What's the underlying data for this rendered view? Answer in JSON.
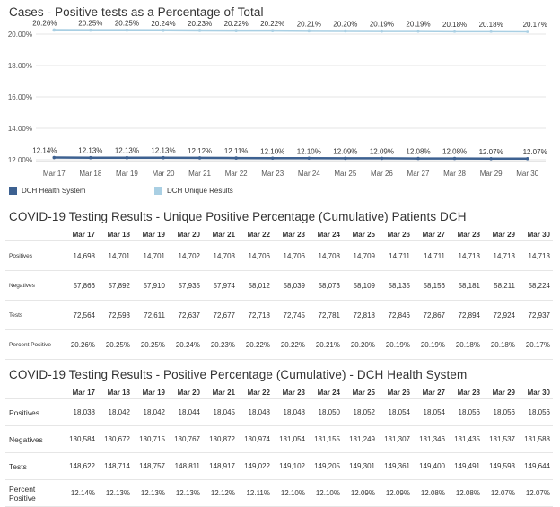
{
  "chart_title": "Cases - Positive tests as a Percentage of Total",
  "chart_data": {
    "type": "line",
    "categories": [
      "Mar 17",
      "Mar 18",
      "Mar 19",
      "Mar 20",
      "Mar 21",
      "Mar 22",
      "Mar 23",
      "Mar 24",
      "Mar 25",
      "Mar 26",
      "Mar 27",
      "Mar 28",
      "Mar 29",
      "Mar 30"
    ],
    "y_ticks": [
      "20.00%",
      "18.00%",
      "16.00%",
      "14.00%",
      "12.00%"
    ],
    "ylim": [
      12.0,
      20.0
    ],
    "grid": true,
    "legend_position": "bottom-left",
    "series": [
      {
        "name": "DCH Unique Results",
        "color": "#a9cfe3",
        "values": [
          20.26,
          20.25,
          20.25,
          20.24,
          20.23,
          20.22,
          20.22,
          20.21,
          20.2,
          20.19,
          20.19,
          20.18,
          20.18,
          20.17
        ],
        "labels": [
          "20.26%",
          "20.25%",
          "20.25%",
          "20.24%",
          "20.23%",
          "20.22%",
          "20.22%",
          "20.21%",
          "20.20%",
          "20.19%",
          "20.19%",
          "20.18%",
          "20.18%",
          "20.17%"
        ]
      },
      {
        "name": "DCH Health System",
        "color": "#3d6191",
        "values": [
          12.14,
          12.13,
          12.13,
          12.13,
          12.12,
          12.11,
          12.1,
          12.1,
          12.09,
          12.09,
          12.08,
          12.08,
          12.07,
          12.07
        ],
        "labels": [
          "12.14%",
          "12.13%",
          "12.13%",
          "12.13%",
          "12.12%",
          "12.11%",
          "12.10%",
          "12.10%",
          "12.09%",
          "12.09%",
          "12.08%",
          "12.08%",
          "12.07%",
          "12.07%"
        ]
      }
    ]
  },
  "legend": [
    {
      "label": "DCH Health System",
      "color": "#3d6191"
    },
    {
      "label": "DCH Unique Results",
      "color": "#a9cfe3"
    }
  ],
  "table1": {
    "title": "COVID-19 Testing Results - Unique Positive Percentage (Cumulative) Patients DCH",
    "columns": [
      "Mar 17",
      "Mar 18",
      "Mar 19",
      "Mar 20",
      "Mar 21",
      "Mar 22",
      "Mar 23",
      "Mar 24",
      "Mar 25",
      "Mar 26",
      "Mar 27",
      "Mar 28",
      "Mar 29",
      "Mar 30"
    ],
    "rows": [
      {
        "label": "Positives",
        "values": [
          "14,698",
          "14,701",
          "14,701",
          "14,702",
          "14,703",
          "14,706",
          "14,706",
          "14,708",
          "14,709",
          "14,711",
          "14,711",
          "14,713",
          "14,713",
          "14,713"
        ]
      },
      {
        "label": "Negatives",
        "values": [
          "57,866",
          "57,892",
          "57,910",
          "57,935",
          "57,974",
          "58,012",
          "58,039",
          "58,073",
          "58,109",
          "58,135",
          "58,156",
          "58,181",
          "58,211",
          "58,224"
        ]
      },
      {
        "label": "Tests",
        "values": [
          "72,564",
          "72,593",
          "72,611",
          "72,637",
          "72,677",
          "72,718",
          "72,745",
          "72,781",
          "72,818",
          "72,846",
          "72,867",
          "72,894",
          "72,924",
          "72,937"
        ]
      },
      {
        "label": "Percent Positive",
        "values": [
          "20.26%",
          "20.25%",
          "20.25%",
          "20.24%",
          "20.23%",
          "20.22%",
          "20.22%",
          "20.21%",
          "20.20%",
          "20.19%",
          "20.19%",
          "20.18%",
          "20.18%",
          "20.17%"
        ]
      }
    ]
  },
  "table2": {
    "title": "COVID-19 Testing Results - Positive Percentage (Cumulative) - DCH Health System",
    "columns": [
      "Mar 17",
      "Mar 18",
      "Mar 19",
      "Mar 20",
      "Mar 21",
      "Mar 22",
      "Mar 23",
      "Mar 24",
      "Mar 25",
      "Mar 26",
      "Mar 27",
      "Mar 28",
      "Mar 29",
      "Mar 30"
    ],
    "rows": [
      {
        "label": "Positives",
        "values": [
          "18,038",
          "18,042",
          "18,042",
          "18,044",
          "18,045",
          "18,048",
          "18,048",
          "18,050",
          "18,052",
          "18,054",
          "18,054",
          "18,056",
          "18,056",
          "18,056"
        ]
      },
      {
        "label": "Negatives",
        "values": [
          "130,584",
          "130,672",
          "130,715",
          "130,767",
          "130,872",
          "130,974",
          "131,054",
          "131,155",
          "131,249",
          "131,307",
          "131,346",
          "131,435",
          "131,537",
          "131,588"
        ]
      },
      {
        "label": "Tests",
        "values": [
          "148,622",
          "148,714",
          "148,757",
          "148,811",
          "148,917",
          "149,022",
          "149,102",
          "149,205",
          "149,301",
          "149,361",
          "149,400",
          "149,491",
          "149,593",
          "149,644"
        ]
      },
      {
        "label": "Percent Positive",
        "values": [
          "12.14%",
          "12.13%",
          "12.13%",
          "12.13%",
          "12.12%",
          "12.11%",
          "12.10%",
          "12.10%",
          "12.09%",
          "12.09%",
          "12.08%",
          "12.08%",
          "12.07%",
          "12.07%"
        ]
      }
    ]
  }
}
